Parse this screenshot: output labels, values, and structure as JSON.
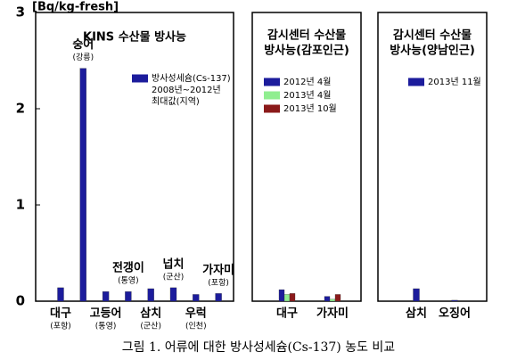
{
  "chart_data": [
    {
      "type": "bar",
      "title": [
        "KINS 수산물 방사능"
      ],
      "y_label": "[Bq/kg-fresh]",
      "categories": [
        "대구",
        "숭어",
        "고등어",
        "전갱이",
        "삼치",
        "넙치",
        "우럭",
        "가자미"
      ],
      "sublabels": [
        "(포항)",
        "(강릉)",
        "(통영)",
        "(통영)",
        "(군산)",
        "(군산)",
        "(인천)",
        "(포항)"
      ],
      "series": [
        {
          "name": "방사성세슘(Cs-137)",
          "color": "#1c1c9c",
          "values": [
            0.14,
            2.42,
            0.1,
            0.1,
            0.13,
            0.14,
            0.07,
            0.08
          ]
        }
      ],
      "legend_note": [
        "2008년~2012년",
        "최대값(지역)"
      ],
      "ylim": [
        0,
        3
      ],
      "yticks": [
        0,
        1,
        2,
        3
      ]
    },
    {
      "type": "bar",
      "title": [
        "감시센터 수산물",
        "방사능(감포인근)"
      ],
      "categories": [
        "대구",
        "가자미"
      ],
      "series": [
        {
          "name": "2012년 4월",
          "color": "#1c1c9c",
          "values": [
            0.12,
            0.05
          ]
        },
        {
          "name": "2013년 4월",
          "color": "#90ee90",
          "values": [
            0.07,
            0.02
          ]
        },
        {
          "name": "2013년 10월",
          "color": "#8b1a1a",
          "values": [
            0.08,
            0.07
          ]
        }
      ],
      "ylim": [
        0,
        3
      ]
    },
    {
      "type": "bar",
      "title": [
        "감시센터 수산물",
        "방사능(양남인근)"
      ],
      "categories": [
        "삼치",
        "오징어"
      ],
      "series": [
        {
          "name": "2013년 11월",
          "color": "#1c1c9c",
          "values": [
            0.13,
            0.01
          ]
        }
      ],
      "ylim": [
        0,
        3
      ]
    }
  ],
  "caption": "그림 1. 어류에 대한 방사성세슘(Cs-137) 농도 비교"
}
